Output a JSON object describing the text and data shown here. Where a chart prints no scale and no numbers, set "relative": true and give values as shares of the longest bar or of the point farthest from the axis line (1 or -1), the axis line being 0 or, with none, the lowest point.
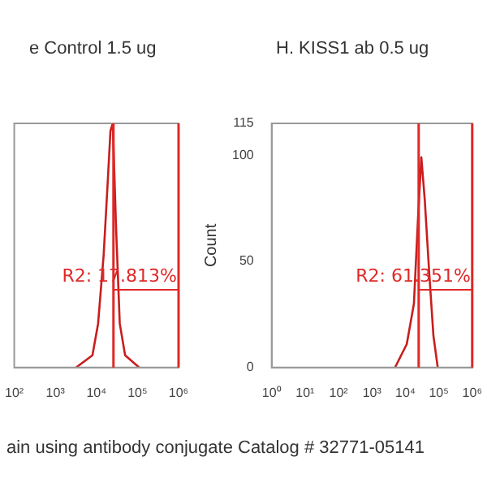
{
  "chart_data": [
    {
      "type": "line",
      "title": "e Control 1.5 ug",
      "relative": true,
      "log": "x",
      "tick_labels": "x",
      "color": "#c81e1e",
      "x": [
        3200,
        8000,
        11000,
        15000,
        19000,
        22000,
        25000,
        30000,
        37000,
        50000,
        110000
      ],
      "values": [
        0,
        0.05,
        0.18,
        0.46,
        0.77,
        0.97,
        1,
        0.58,
        0.18,
        0.05,
        0
      ],
      "xlim": [
        100,
        1000000
      ],
      "xticks": [
        {
          "value": 100,
          "label": "10²"
        },
        {
          "value": 1000,
          "label": "10³"
        },
        {
          "value": 10000,
          "label": "10⁴"
        },
        {
          "value": 100000,
          "label": "10⁵"
        },
        {
          "value": 1000000,
          "label": "10⁶"
        }
      ],
      "ref_lines": [
        {
          "axis": "x",
          "value": 26000,
          "color": "#e02828"
        },
        {
          "axis": "x",
          "value": 1000000,
          "color": "#e02828"
        }
      ],
      "annotations": [
        {
          "text": "R2: 17.813%",
          "x": 26000
        },
        "ain using antibody conjugate Catalog # 32771-05141"
      ]
    },
    {
      "type": "line",
      "title": "H. KISS1 ab 0.5 ug",
      "ylabel": "Count",
      "log": "x",
      "color": "#c81e1e",
      "x": [
        4900,
        11000,
        18000,
        24000,
        30000,
        38000,
        51000,
        69000,
        93000
      ],
      "values": [
        0,
        11,
        30,
        71,
        99,
        79,
        46,
        15,
        0
      ],
      "xlim": [
        1,
        1000000
      ],
      "xticks": [
        {
          "value": 1,
          "label": "10⁰"
        },
        {
          "value": 10,
          "label": "10¹"
        },
        {
          "value": 100,
          "label": "10²"
        },
        {
          "value": 1000,
          "label": "10³"
        },
        {
          "value": 10000,
          "label": "10⁴"
        },
        {
          "value": 100000,
          "label": "10⁵"
        },
        {
          "value": 1000000,
          "label": "10⁶"
        }
      ],
      "ylim": [
        0,
        115
      ],
      "yticks": [
        0,
        50,
        100,
        115
      ],
      "ref_lines": [
        {
          "axis": "x",
          "value": 25000,
          "color": "#e02828"
        },
        {
          "axis": "x",
          "value": 1000000,
          "color": "#e02828"
        }
      ],
      "annotations": [
        {
          "text": "R2: 61.351%",
          "x": 25000
        }
      ]
    }
  ]
}
